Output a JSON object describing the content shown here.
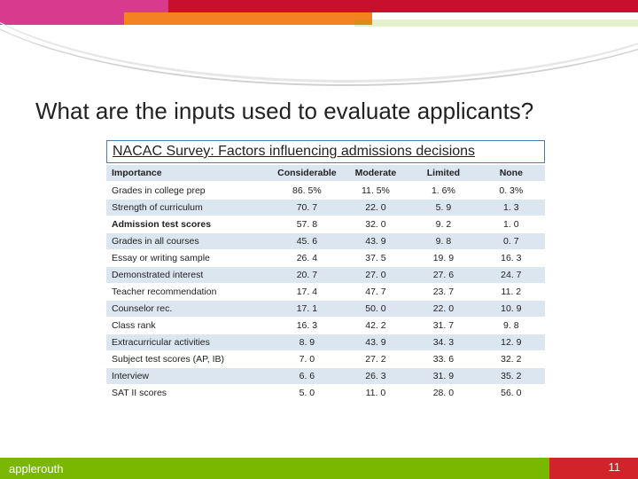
{
  "title": "What are the inputs used to evaluate applicants?",
  "subtitle": "NACAC Survey: Factors influencing admissions decisions",
  "table": {
    "columns": [
      "Importance",
      "Considerable",
      "Moderate",
      "Limited",
      "None"
    ],
    "rows": [
      {
        "label": "Grades in college prep",
        "vals": [
          "86. 5%",
          "11. 5%",
          "1. 6%",
          "0. 3%"
        ],
        "bold": false
      },
      {
        "label": "Strength of curriculum",
        "vals": [
          "70. 7",
          "22. 0",
          "5. 9",
          "1. 3"
        ],
        "bold": false
      },
      {
        "label": "Admission test scores",
        "vals": [
          "57. 8",
          "32. 0",
          "9. 2",
          "1. 0"
        ],
        "bold": true
      },
      {
        "label": "Grades in all courses",
        "vals": [
          "45. 6",
          "43. 9",
          "9. 8",
          "0. 7"
        ],
        "bold": false
      },
      {
        "label": "Essay or writing sample",
        "vals": [
          "26. 4",
          "37. 5",
          "19. 9",
          "16. 3"
        ],
        "bold": false
      },
      {
        "label": "Demonstrated interest",
        "vals": [
          "20. 7",
          "27. 0",
          "27. 6",
          "24. 7"
        ],
        "bold": false
      },
      {
        "label": "Teacher recommendation",
        "vals": [
          "17. 4",
          "47. 7",
          "23. 7",
          "11. 2"
        ],
        "bold": false
      },
      {
        "label": "Counselor rec.",
        "vals": [
          "17. 1",
          "50. 0",
          "22. 0",
          "10. 9"
        ],
        "bold": false
      },
      {
        "label": "Class rank",
        "vals": [
          "16. 3",
          "42. 2",
          "31. 7",
          "9. 8"
        ],
        "bold": false
      },
      {
        "label": "Extracurricular activities",
        "vals": [
          "8. 9",
          "43. 9",
          "34. 3",
          "12. 9"
        ],
        "bold": false
      },
      {
        "label": "Subject test scores (AP, IB)",
        "vals": [
          "7. 0",
          "27. 2",
          "33. 6",
          "32. 2"
        ],
        "bold": false
      },
      {
        "label": "Interview",
        "vals": [
          "6. 6",
          "26. 3",
          "31. 9",
          "35. 2"
        ],
        "bold": false
      },
      {
        "label": "SAT II scores",
        "vals": [
          "5. 0",
          "11. 0",
          "28. 0",
          "56. 0"
        ],
        "bold": false
      }
    ],
    "header_bg": "#dce6f1",
    "row_alt_bg": "#dce6f1"
  },
  "footer": {
    "brand": "applerouth",
    "page": "11",
    "bg": "#7ab800",
    "accent": "#d2232a"
  },
  "decor": {
    "pink": "#d83a8d",
    "red": "#c8102e",
    "orange": "#f58220",
    "green": "#7ab800"
  }
}
